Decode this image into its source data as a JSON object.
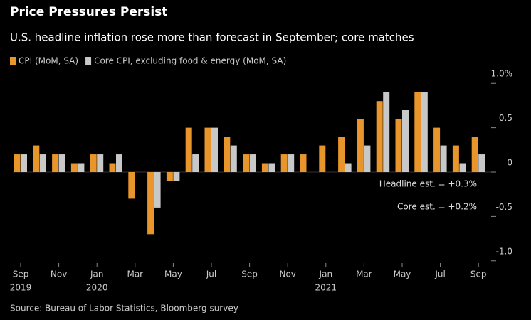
{
  "chart_data": {
    "type": "bar",
    "title": "Price Pressures Persist",
    "subtitle": "U.S. headline inflation rose more than forecast in September; core matches",
    "categories": [
      "Sep",
      null,
      "Nov",
      null,
      "Jan",
      null,
      "Mar",
      null,
      "May",
      null,
      "Jul",
      null,
      "Sep",
      null,
      "Nov",
      null,
      "Jan",
      null,
      "Mar",
      null,
      "May",
      null,
      "Jul",
      null,
      "Sep"
    ],
    "year_labels": [
      "2019",
      null,
      null,
      null,
      "2020",
      null,
      null,
      null,
      null,
      null,
      null,
      null,
      null,
      null,
      null,
      null,
      "2021",
      null,
      null,
      null,
      null,
      null,
      null,
      null,
      null
    ],
    "series": [
      {
        "name": "CPI (MoM, SA)",
        "color": "#e8952b",
        "values": [
          0.2,
          0.3,
          0.2,
          0.1,
          0.2,
          0.1,
          -0.3,
          -0.7,
          -0.1,
          0.5,
          0.5,
          0.4,
          0.2,
          0.1,
          0.2,
          0.2,
          0.3,
          0.4,
          0.6,
          0.8,
          0.6,
          0.9,
          0.5,
          0.3,
          0.4
        ]
      },
      {
        "name": "Core CPI, excluding food & energy (MoM, SA)",
        "color": "#c8c8c8",
        "values": [
          0.2,
          0.2,
          0.2,
          0.1,
          0.2,
          0.2,
          0,
          -0.4,
          -0.1,
          0.2,
          0.5,
          0.3,
          0.2,
          0.1,
          0.2,
          0,
          0,
          0.1,
          0.3,
          0.9,
          0.7,
          0.9,
          0.3,
          0.1,
          0.2
        ]
      }
    ],
    "ylim": [
      -1.05,
      1.05
    ],
    "yticks": [
      {
        "value": 1,
        "label": "1.0%"
      },
      0.5,
      0,
      -0.5,
      {
        "value": -1,
        "label": "-1.0"
      }
    ],
    "annotations": [
      "Headline est. = +0.3%",
      "Core est. = +0.2%"
    ],
    "source": "Source: Bureau of Labor Statistics, Bloomberg survey"
  }
}
